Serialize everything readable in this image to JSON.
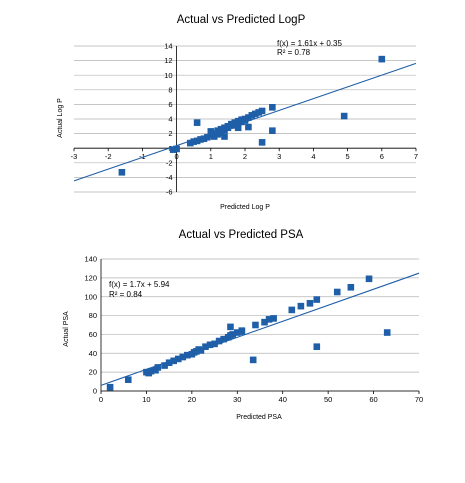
{
  "chart_data": [
    {
      "type": "scatter",
      "title": "Actual vs Predicted LogP",
      "xlabel": "Predicted Log P",
      "ylabel": "Actual Log P",
      "xlim": [
        -3,
        7
      ],
      "ylim": [
        -6,
        14
      ],
      "xticks": [
        -3,
        -2,
        -1,
        0,
        1,
        2,
        3,
        4,
        5,
        6,
        7
      ],
      "yticks": [
        -6,
        -4,
        -2,
        0,
        2,
        4,
        6,
        8,
        10,
        12,
        14
      ],
      "grid": true,
      "marker_color": "#1f5fa8",
      "line_color": "#1f5fa8",
      "trendline": {
        "slope": 1.61,
        "intercept": 0.35,
        "equation": "f(x) = 1.61x + 0.35",
        "r2": "R² = 0.78"
      },
      "points": [
        [
          -1.6,
          -3.3
        ],
        [
          -0.1,
          -0.2
        ],
        [
          0.0,
          -0.1
        ],
        [
          0.4,
          0.7
        ],
        [
          0.5,
          0.9
        ],
        [
          0.6,
          1.0
        ],
        [
          0.7,
          1.2
        ],
        [
          0.8,
          1.3
        ],
        [
          0.6,
          3.5
        ],
        [
          0.9,
          1.5
        ],
        [
          1.0,
          1.8
        ],
        [
          1.0,
          2.3
        ],
        [
          1.1,
          1.6
        ],
        [
          1.1,
          2.0
        ],
        [
          1.2,
          1.9
        ],
        [
          1.2,
          2.4
        ],
        [
          1.3,
          2.1
        ],
        [
          1.3,
          2.6
        ],
        [
          1.4,
          2.5
        ],
        [
          1.4,
          2.8
        ],
        [
          1.5,
          2.8
        ],
        [
          1.5,
          3.0
        ],
        [
          1.6,
          3.1
        ],
        [
          1.6,
          3.3
        ],
        [
          1.7,
          3.2
        ],
        [
          1.7,
          3.5
        ],
        [
          1.8,
          3.7
        ],
        [
          1.8,
          3.4
        ],
        [
          1.9,
          3.9
        ],
        [
          1.9,
          3.6
        ],
        [
          2.0,
          4.0
        ],
        [
          2.0,
          3.8
        ],
        [
          2.1,
          4.2
        ],
        [
          2.2,
          4.5
        ],
        [
          2.3,
          4.7
        ],
        [
          2.4,
          4.9
        ],
        [
          2.5,
          5.1
        ],
        [
          1.4,
          1.6
        ],
        [
          1.8,
          2.8
        ],
        [
          2.1,
          2.9
        ],
        [
          2.5,
          0.8
        ],
        [
          2.8,
          2.4
        ],
        [
          2.8,
          5.6
        ],
        [
          4.9,
          4.4
        ],
        [
          6.0,
          12.2
        ]
      ]
    },
    {
      "type": "scatter",
      "title": "Actual vs Predicted PSA",
      "xlabel": "Predicted PSA",
      "ylabel": "Actual PSA",
      "xlim": [
        0,
        70
      ],
      "ylim": [
        0,
        140
      ],
      "xticks": [
        0,
        10,
        20,
        30,
        40,
        50,
        60,
        70
      ],
      "yticks": [
        0,
        20,
        40,
        60,
        80,
        100,
        120,
        140
      ],
      "grid": true,
      "marker_color": "#1f5fa8",
      "line_color": "#1f5fa8",
      "trendline": {
        "slope": 1.7,
        "intercept": 5.94,
        "equation": "f(x) = 1.7x + 5.94",
        "r2": "R² = 0.84"
      },
      "points": [
        [
          2,
          4
        ],
        [
          6,
          12
        ],
        [
          10,
          20
        ],
        [
          10.5,
          19
        ],
        [
          11,
          21
        ],
        [
          12,
          22
        ],
        [
          12.5,
          25
        ],
        [
          14,
          27
        ],
        [
          15,
          30
        ],
        [
          16,
          32
        ],
        [
          17,
          34
        ],
        [
          18,
          36
        ],
        [
          19,
          38
        ],
        [
          20,
          39
        ],
        [
          20.5,
          41
        ],
        [
          21,
          42
        ],
        [
          21.5,
          44
        ],
        [
          22,
          43
        ],
        [
          23,
          47
        ],
        [
          24,
          49
        ],
        [
          25,
          50
        ],
        [
          26,
          53
        ],
        [
          27,
          55
        ],
        [
          28,
          57
        ],
        [
          28.5,
          59
        ],
        [
          29,
          60
        ],
        [
          30,
          62
        ],
        [
          31,
          63
        ],
        [
          28.5,
          68
        ],
        [
          31,
          64
        ],
        [
          33.5,
          33
        ],
        [
          34,
          70
        ],
        [
          36,
          73
        ],
        [
          37,
          76
        ],
        [
          38,
          77
        ],
        [
          42,
          86
        ],
        [
          44,
          90
        ],
        [
          46,
          93
        ],
        [
          47.5,
          97
        ],
        [
          47.5,
          47
        ],
        [
          52,
          105
        ],
        [
          55,
          110
        ],
        [
          59,
          119
        ],
        [
          63,
          62
        ]
      ]
    }
  ]
}
